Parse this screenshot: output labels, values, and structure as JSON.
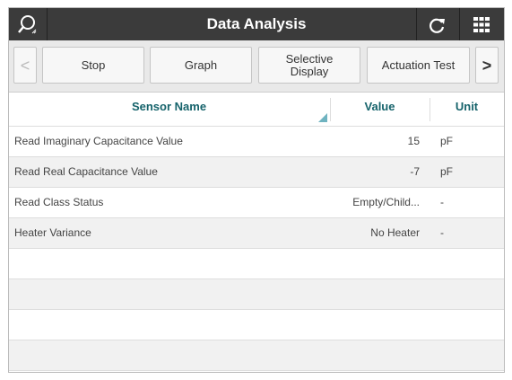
{
  "header": {
    "title": "Data Analysis"
  },
  "toolbar": {
    "buttons": [
      "Stop",
      "Graph",
      "Selective Display",
      "Actuation Test"
    ]
  },
  "table": {
    "columns": [
      "Sensor Name",
      "Value",
      "Unit"
    ],
    "rows": [
      [
        "Read Imaginary Capacitance Value",
        "15",
        "pF"
      ],
      [
        "Read Real Capacitance Value",
        "-7",
        "pF"
      ],
      [
        "Read Class Status",
        "Empty/Child...",
        "-"
      ],
      [
        "Heater Variance",
        "No Heater",
        "-"
      ]
    ]
  }
}
